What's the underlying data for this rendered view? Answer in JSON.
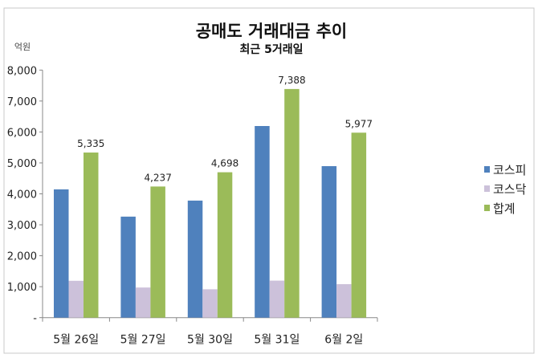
{
  "chart_data": {
    "type": "bar",
    "title": "공매도 거래대금 추이",
    "subtitle": "최근 5거래일",
    "ylabel": "억원",
    "ylim": [
      0,
      8000
    ],
    "yticks": [
      0,
      1000,
      2000,
      3000,
      4000,
      5000,
      6000,
      7000,
      8000
    ],
    "ytick_labels": [
      "-",
      "1,000",
      "2,000",
      "3,000",
      "4,000",
      "5,000",
      "6,000",
      "7,000",
      "8,000"
    ],
    "categories": [
      "5월 26일",
      "5월 27일",
      "5월 30일",
      "5월 31일",
      "6월 2일"
    ],
    "series": [
      {
        "name": "코스피",
        "color": "#4f81bd",
        "values": [
          4145,
          3264,
          3782,
          6192,
          4896
        ]
      },
      {
        "name": "코스닥",
        "color": "#ccc1da",
        "values": [
          1190,
          973,
          916,
          1196,
          1081
        ]
      },
      {
        "name": "합계",
        "color": "#9bbb59",
        "values": [
          5335,
          4237,
          4698,
          7388,
          5977
        ],
        "data_labels": [
          "5,335",
          "4,237",
          "4,698",
          "7,388",
          "5,977"
        ]
      }
    ],
    "grid": false,
    "legend": "right"
  }
}
